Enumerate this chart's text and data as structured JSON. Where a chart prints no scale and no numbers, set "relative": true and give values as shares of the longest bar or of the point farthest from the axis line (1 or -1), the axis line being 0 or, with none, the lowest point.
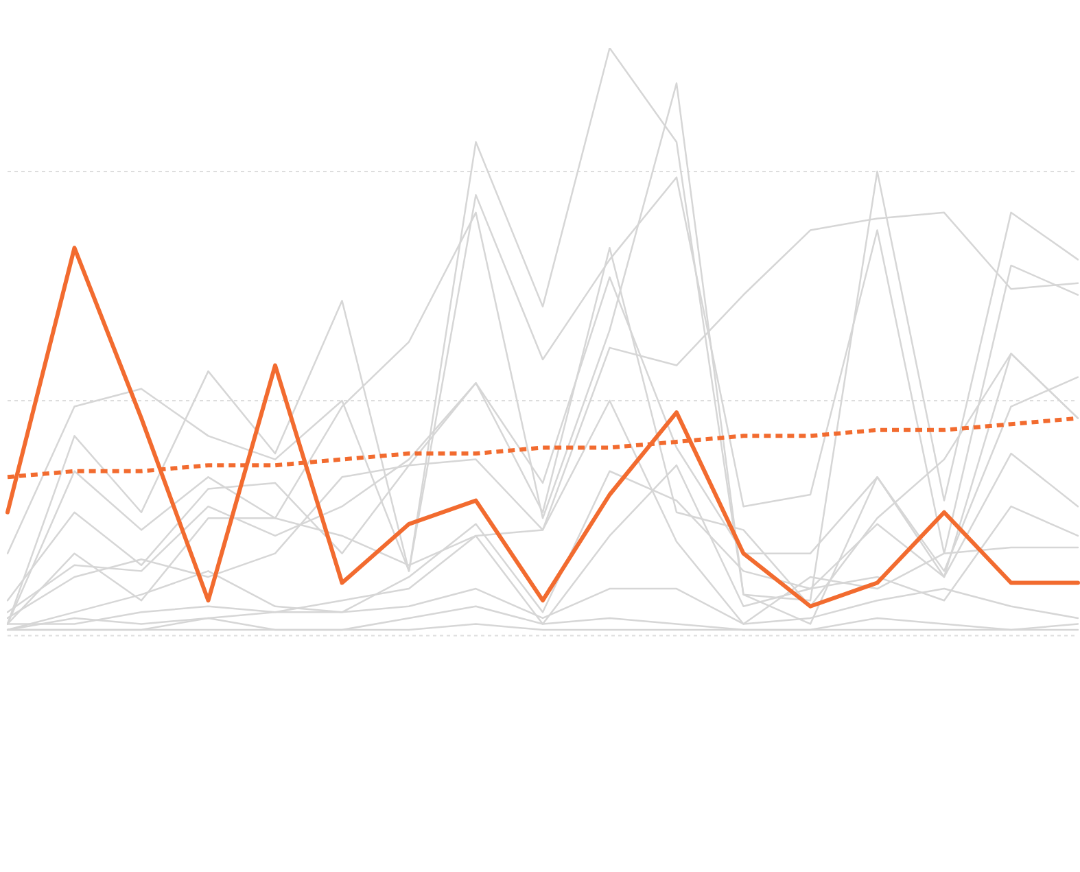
{
  "chart_data": {
    "type": "line",
    "relative": true,
    "legend": false,
    "marker": "none",
    "ref_lines": [
      {
        "axis": "y",
        "value": 0,
        "color": "#dddddd",
        "line_style": "dashed"
      },
      {
        "axis": "y",
        "value": 0.4,
        "color": "#dddddd",
        "line_style": "dashed"
      },
      {
        "axis": "y",
        "value": 0.79,
        "color": "#dddddd",
        "line_style": "dashed"
      }
    ],
    "categories": [
      null,
      null,
      null,
      null,
      null,
      null,
      null,
      null,
      null,
      null,
      null,
      null,
      null,
      null,
      null,
      null,
      null
    ],
    "series": [
      {
        "color": "#d6d6d6",
        "values": [
          0.14,
          0.39,
          0.42,
          0.34,
          0.3,
          0.4,
          0.11,
          0.84,
          0.56,
          1.0,
          0.84,
          0.07,
          0.06,
          0.79,
          0.23,
          0.72,
          0.64
        ]
      },
      {
        "color": "#d6d6d6",
        "values": [
          0.02,
          0.34,
          0.21,
          0.45,
          0.31,
          0.57,
          0.11,
          0.75,
          0.47,
          0.64,
          0.78,
          0.22,
          0.24,
          0.69,
          0.14,
          0.63,
          0.58
        ]
      },
      {
        "color": "#d6d6d6",
        "values": [
          0.02,
          0.28,
          0.18,
          0.27,
          0.2,
          0.39,
          0.5,
          0.72,
          0.2,
          0.52,
          0.94,
          0.07,
          0.02,
          0.27,
          0.1,
          0.48,
          0.37
        ]
      },
      {
        "color": "#d6d6d6",
        "values": [
          0.06,
          0.21,
          0.12,
          0.25,
          0.26,
          0.14,
          0.29,
          0.3,
          0.18,
          0.49,
          0.46,
          0.58,
          0.69,
          0.71,
          0.72,
          0.59,
          0.6
        ]
      },
      {
        "color": "#d6d6d6",
        "values": [
          0.04,
          0.12,
          0.11,
          0.22,
          0.17,
          0.22,
          0.3,
          0.43,
          0.26,
          0.61,
          0.32,
          0.14,
          0.14,
          0.27,
          0.11,
          0.39,
          0.44
        ]
      },
      {
        "color": "#d6d6d6",
        "values": [
          0.03,
          0.1,
          0.13,
          0.1,
          0.14,
          0.27,
          0.29,
          0.43,
          0.21,
          0.66,
          0.21,
          0.18,
          0.05,
          0.2,
          0.3,
          0.48,
          0.37
        ]
      },
      {
        "color": "#d6d6d6",
        "values": [
          0.01,
          0.04,
          0.07,
          0.11,
          0.05,
          0.04,
          0.1,
          0.19,
          0.04,
          0.28,
          0.23,
          0.11,
          0.08,
          0.19,
          0.1,
          0.31,
          0.22
        ]
      },
      {
        "color": "#d6d6d6",
        "values": [
          0.02,
          0.02,
          0.04,
          0.05,
          0.04,
          0.04,
          0.05,
          0.08,
          0.03,
          0.08,
          0.08,
          0.02,
          0.03,
          0.06,
          0.08,
          0.05,
          0.03
        ]
      },
      {
        "color": "#d6d6d6",
        "values": [
          0.01,
          0.01,
          0.01,
          0.03,
          0.01,
          0.01,
          0.03,
          0.05,
          0.02,
          0.03,
          0.02,
          0.01,
          0.01,
          0.03,
          0.02,
          0.01,
          0.02
        ]
      },
      {
        "color": "#d6d6d6",
        "values": [
          0.01,
          0.03,
          0.02,
          0.03,
          0.04,
          0.06,
          0.08,
          0.17,
          0.02,
          0.17,
          0.29,
          0.05,
          0.08,
          0.1,
          0.06,
          0.22,
          0.17
        ]
      },
      {
        "color": "#d6d6d6",
        "values": [
          0.01,
          0.01,
          0.01,
          0.01,
          0.01,
          0.01,
          0.01,
          0.02,
          0.01,
          0.01,
          0.01,
          0.01,
          0.01,
          0.01,
          0.01,
          0.01,
          0.01
        ]
      },
      {
        "color": "#d6d6d6",
        "values": [
          0.02,
          0.14,
          0.06,
          0.2,
          0.2,
          0.17,
          0.12,
          0.17,
          0.18,
          0.4,
          0.16,
          0.02,
          0.1,
          0.08,
          0.14,
          0.15,
          0.15
        ]
      },
      {
        "color": "#f26b2f",
        "line_style": "dashed",
        "values": [
          0.27,
          0.28,
          0.28,
          0.29,
          0.29,
          0.3,
          0.31,
          0.31,
          0.32,
          0.32,
          0.33,
          0.34,
          0.34,
          0.35,
          0.35,
          0.36,
          0.37
        ]
      },
      {
        "color": "#f26b2f",
        "values": [
          0.21,
          0.66,
          0.37,
          0.06,
          0.46,
          0.09,
          0.19,
          0.23,
          0.06,
          0.24,
          0.38,
          0.14,
          0.05,
          0.09,
          0.21,
          0.09,
          0.09
        ]
      }
    ]
  }
}
